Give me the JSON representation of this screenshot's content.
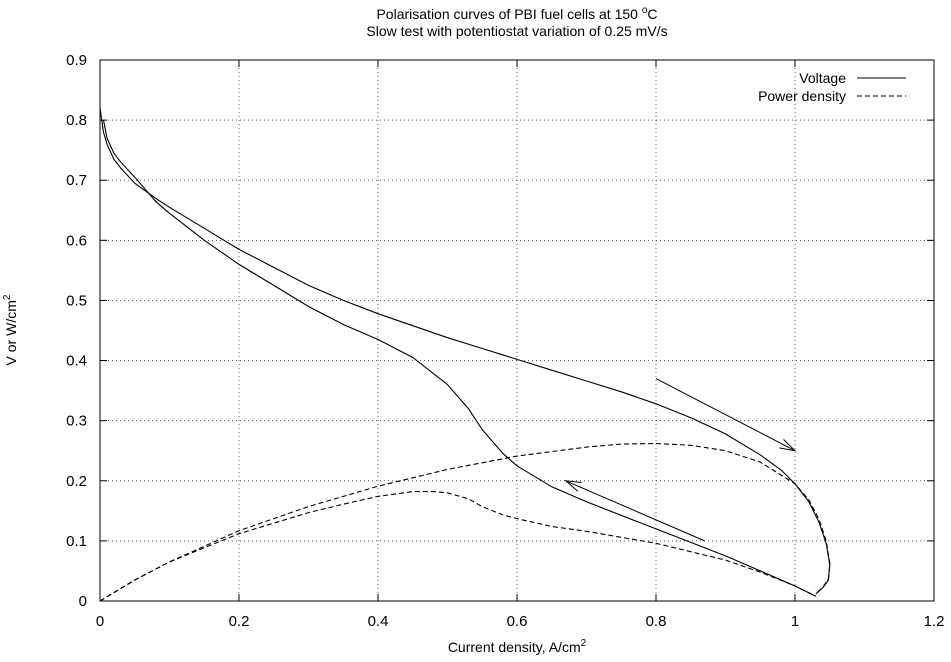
{
  "chart_data": {
    "type": "line",
    "title": "Polarisation curves of PBI fuel cells at 150 ",
    "title_superscript": "o",
    "title_suffix": "C",
    "subtitle": "Slow test with potentiostat variation of 0.25 mV/s",
    "xlabel": "Current density, A/cm",
    "xlabel_superscript": "2",
    "ylabel": "V or W/cm",
    "ylabel_superscript": "2",
    "xlim": [
      0,
      1.2
    ],
    "ylim": [
      0,
      0.9
    ],
    "xticks": [
      "0",
      "0.2",
      "0.4",
      "0.6",
      "0.8",
      "1",
      "1.2"
    ],
    "yticks": [
      "0",
      "0.1",
      "0.2",
      "0.3",
      "0.4",
      "0.5",
      "0.6",
      "0.7",
      "0.8",
      "0.9"
    ],
    "grid": true,
    "legend_position": "top-right",
    "legend": [
      {
        "label": "Voltage",
        "style": "solid"
      },
      {
        "label": "Power density",
        "style": "dashed"
      }
    ],
    "series": [
      {
        "name": "Voltage",
        "style": "solid",
        "direction": "forward",
        "x": [
          0,
          0.005,
          0.01,
          0.02,
          0.03,
          0.05,
          0.08,
          0.1,
          0.15,
          0.2,
          0.25,
          0.3,
          0.35,
          0.4,
          0.45,
          0.5,
          0.55,
          0.6,
          0.65,
          0.7,
          0.75,
          0.8,
          0.85,
          0.9,
          0.95,
          0.98,
          1.0,
          1.02,
          1.035,
          1.045,
          1.05,
          1.048,
          1.04,
          1.03
        ],
        "y": [
          0.82,
          0.78,
          0.76,
          0.735,
          0.72,
          0.695,
          0.67,
          0.655,
          0.62,
          0.585,
          0.555,
          0.525,
          0.5,
          0.478,
          0.458,
          0.438,
          0.42,
          0.402,
          0.384,
          0.366,
          0.348,
          0.328,
          0.305,
          0.278,
          0.243,
          0.218,
          0.195,
          0.165,
          0.13,
          0.095,
          0.06,
          0.035,
          0.022,
          0.012
        ]
      },
      {
        "name": "Voltage",
        "style": "solid",
        "direction": "return",
        "x": [
          0.005,
          0.01,
          0.02,
          0.03,
          0.05,
          0.08,
          0.1,
          0.15,
          0.2,
          0.25,
          0.3,
          0.35,
          0.4,
          0.45,
          0.5,
          0.53,
          0.55,
          0.58,
          0.6,
          0.65,
          0.7,
          0.8,
          0.9,
          0.95,
          1.0,
          1.03
        ],
        "y": [
          0.8,
          0.77,
          0.745,
          0.73,
          0.705,
          0.665,
          0.645,
          0.6,
          0.56,
          0.525,
          0.49,
          0.46,
          0.435,
          0.405,
          0.36,
          0.32,
          0.285,
          0.245,
          0.225,
          0.19,
          0.165,
          0.12,
          0.075,
          0.05,
          0.025,
          0.008
        ]
      },
      {
        "name": "Power density",
        "style": "dashed",
        "direction": "forward",
        "x": [
          0,
          0.05,
          0.1,
          0.2,
          0.3,
          0.4,
          0.5,
          0.6,
          0.7,
          0.75,
          0.8,
          0.85,
          0.9,
          0.95,
          1.0,
          1.02,
          1.035,
          1.045,
          1.05,
          1.048,
          1.04,
          1.03
        ],
        "y": [
          0,
          0.035,
          0.065,
          0.117,
          0.157,
          0.191,
          0.219,
          0.241,
          0.256,
          0.261,
          0.262,
          0.259,
          0.25,
          0.231,
          0.195,
          0.168,
          0.135,
          0.099,
          0.063,
          0.037,
          0.023,
          0.012
        ]
      },
      {
        "name": "Power density",
        "style": "dashed",
        "direction": "return",
        "x": [
          0,
          0.05,
          0.1,
          0.2,
          0.3,
          0.35,
          0.4,
          0.45,
          0.48,
          0.5,
          0.53,
          0.55,
          0.58,
          0.6,
          0.65,
          0.7,
          0.8,
          0.9,
          0.95,
          1.0,
          1.03
        ],
        "y": [
          0,
          0.035,
          0.065,
          0.112,
          0.147,
          0.161,
          0.174,
          0.182,
          0.182,
          0.18,
          0.17,
          0.157,
          0.143,
          0.137,
          0.124,
          0.116,
          0.096,
          0.068,
          0.048,
          0.025,
          0.008
        ]
      }
    ],
    "annotations": [
      {
        "type": "arrow",
        "from": [
          0.8,
          0.37
        ],
        "to": [
          1.0,
          0.25
        ]
      },
      {
        "type": "arrow",
        "from": [
          0.87,
          0.1
        ],
        "to": [
          0.67,
          0.2
        ]
      }
    ]
  }
}
